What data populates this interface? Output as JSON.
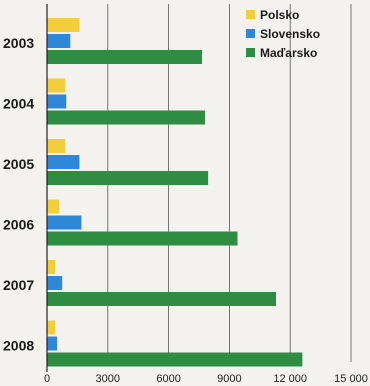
{
  "chart_data": {
    "type": "bar",
    "orientation": "horizontal",
    "categories": [
      "2003",
      "2004",
      "2005",
      "2006",
      "2007",
      "2008"
    ],
    "series": [
      {
        "name": "Polsko",
        "color": "#f2cd3c",
        "values": [
          1600,
          900,
          900,
          600,
          400,
          400
        ]
      },
      {
        "name": "Slovensko",
        "color": "#2f87d8",
        "values": [
          1150,
          950,
          1600,
          1700,
          750,
          500
        ]
      },
      {
        "name": "Maďarsko",
        "color": "#2f8c43",
        "values": [
          7650,
          7800,
          7950,
          9400,
          11300,
          12600
        ]
      }
    ],
    "x_ticks": [
      "0",
      "3000",
      "6000",
      "9000",
      "12 000",
      "15 000"
    ],
    "xlim": [
      0,
      15000
    ],
    "grid": true,
    "legend_position": "top-right"
  }
}
